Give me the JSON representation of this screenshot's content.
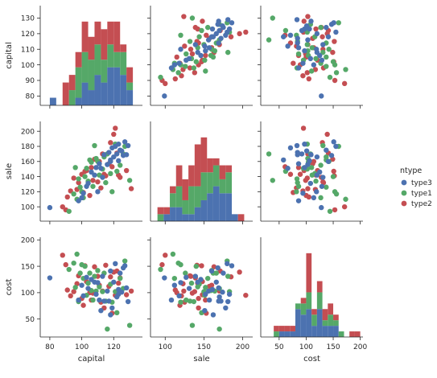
{
  "chart_data": {
    "type": "scatter",
    "kind": "pairplot",
    "variables": [
      "capital",
      "sale",
      "cost"
    ],
    "axis_labels": {
      "capital": "capital",
      "sale": "sale",
      "cost": "cost"
    },
    "ticks": {
      "capital": [
        80,
        100,
        120
      ],
      "sale": [
        100,
        150,
        200
      ],
      "cost": [
        50,
        100,
        150,
        200
      ]
    },
    "y_ticks": {
      "capital": [
        80,
        90,
        100,
        110,
        120,
        130
      ],
      "sale": [
        100,
        120,
        140,
        160,
        180,
        200
      ],
      "cost": [
        50,
        100,
        150,
        200
      ]
    },
    "ranges": {
      "capital": [
        74,
        138
      ],
      "sale": [
        81,
        213
      ],
      "cost": [
        16,
        205
      ]
    },
    "hue_variable": "ntype",
    "legend": {
      "title": "ntype",
      "position": "right",
      "entries": [
        "type3",
        "type1",
        "type2"
      ]
    },
    "colors": {
      "type3": "#4c72b0",
      "type1": "#55a868",
      "type2": "#c44e52"
    },
    "grid": false,
    "diagonal": "stacked-histogram",
    "bins": {
      "capital": [
        76,
        80,
        84,
        88,
        92,
        96,
        100,
        104,
        108,
        112,
        116,
        120,
        124,
        128,
        132
      ],
      "sale": [
        90,
        98,
        106,
        114,
        122,
        130,
        138,
        146,
        154,
        162,
        170,
        178,
        186,
        194,
        202
      ],
      "cost": [
        30,
        40,
        50,
        60,
        70,
        80,
        90,
        100,
        110,
        120,
        130,
        140,
        150,
        160,
        170,
        180,
        190,
        200
      ]
    },
    "series": [
      {
        "name": "type3",
        "capital": [
          80,
          98,
          101,
          104,
          106,
          109,
          111,
          112,
          114,
          116,
          117,
          118,
          119,
          120,
          121,
          122,
          123,
          124,
          125,
          126,
          127,
          128,
          129,
          118,
          113,
          108,
          103,
          100,
          110,
          123
        ],
        "sale": [
          99,
          108,
          118,
          131,
          146,
          152,
          157,
          151,
          169,
          156,
          172,
          162,
          178,
          166,
          180,
          170,
          183,
          175,
          174,
          168,
          186,
          169,
          181,
          160,
          139,
          142,
          127,
          112,
          120,
          161
        ],
        "cost": [
          128,
          86,
          94,
          108,
          125,
          97,
          86,
          66,
          84,
          103,
          84,
          58,
          71,
          120,
          155,
          92,
          97,
          137,
          101,
          147,
          151,
          109,
          83,
          141,
          131,
          120,
          129,
          114,
          119,
          106
        ]
      },
      {
        "name": "type1",
        "capital": [
          92,
          95,
          96,
          97,
          98,
          99,
          100,
          101,
          102,
          103,
          104,
          105,
          106,
          107,
          108,
          109,
          110,
          111,
          113,
          114,
          115,
          116,
          118,
          119,
          121,
          122,
          124,
          126,
          127,
          130
        ],
        "sale": [
          94,
          117,
          152,
          110,
          137,
          126,
          120,
          112,
          140,
          151,
          134,
          162,
          159,
          127,
          181,
          164,
          160,
          142,
          150,
          166,
          132,
          170,
          144,
          120,
          183,
          147,
          155,
          170,
          180,
          135
        ],
        "cost": [
          144,
          156,
          110,
          173,
          83,
          137,
          153,
          127,
          150,
          95,
          118,
          137,
          104,
          86,
          131,
          103,
          142,
          111,
          102,
          137,
          84,
          31,
          116,
          82,
          102,
          62,
          127,
          108,
          160,
          38
        ],
        "cost_hist": [
          40,
          80,
          90,
          95,
          100,
          100,
          105,
          110,
          115,
          120,
          125,
          125,
          130,
          140,
          145,
          150,
          160
        ]
      },
      {
        "name": "type2",
        "capital": [
          88,
          90,
          91,
          93,
          95,
          97,
          98,
          100,
          101,
          102,
          103,
          105,
          106,
          107,
          108,
          110,
          111,
          112,
          113,
          114,
          115,
          117,
          118,
          119,
          120,
          121,
          122,
          123,
          124,
          128,
          131
        ],
        "sale": [
          100,
          96,
          113,
          121,
          138,
          123,
          132,
          143,
          119,
          147,
          148,
          115,
          152,
          135,
          163,
          133,
          160,
          125,
          170,
          143,
          141,
          157,
          185,
          153,
          196,
          204,
          171,
          142,
          139,
          148,
          124
        ],
        "cost": [
          171,
          153,
          105,
          94,
          102,
          117,
          132,
          89,
          76,
          151,
          121,
          100,
          86,
          99,
          149,
          131,
          114,
          82,
          103,
          71,
          152,
          112,
          130,
          61,
          139,
          95,
          141,
          118,
          128,
          96,
          103
        ],
        "cost_hist": [
          40,
          50,
          60,
          70,
          95,
          100,
          100,
          100,
          100,
          100,
          100,
          105,
          110,
          120,
          125,
          130,
          135,
          140,
          145,
          150,
          180,
          190
        ]
      }
    ]
  }
}
